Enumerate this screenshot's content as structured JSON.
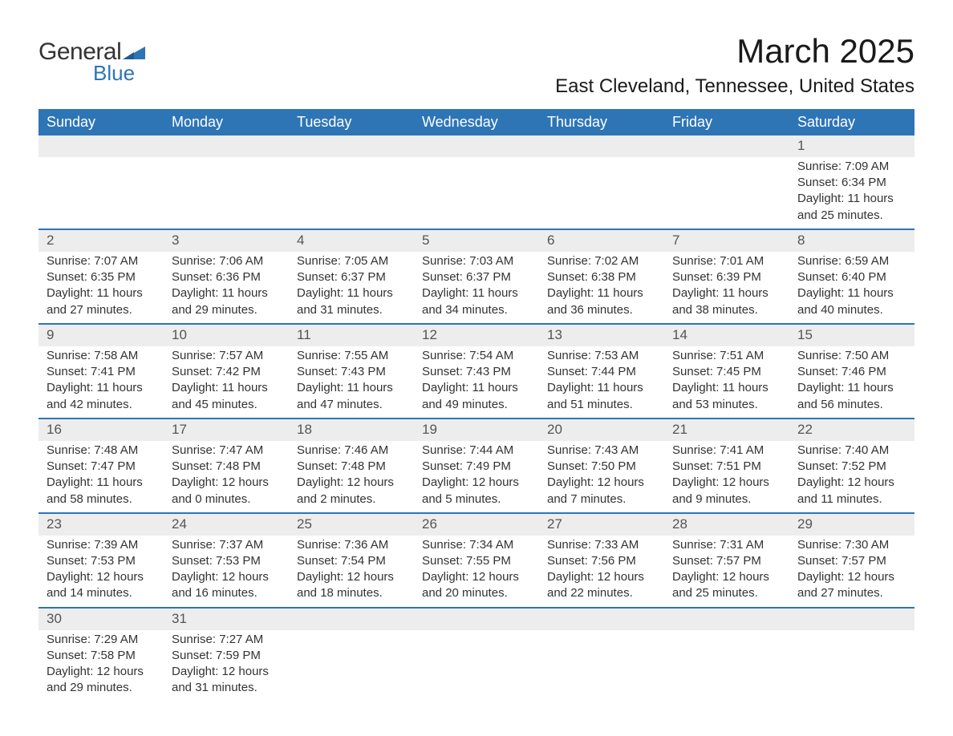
{
  "logo": {
    "general": "General",
    "blue": "Blue",
    "mark_color": "#2e75b6"
  },
  "title": "March 2025",
  "location": "East Cleveland, Tennessee, United States",
  "colors": {
    "header_bg": "#2e75b6",
    "header_text": "#ffffff",
    "daynum_bg": "#ededed",
    "row_border": "#2e75b6",
    "text": "#333333"
  },
  "weekdays": [
    "Sunday",
    "Monday",
    "Tuesday",
    "Wednesday",
    "Thursday",
    "Friday",
    "Saturday"
  ],
  "weeks": [
    [
      null,
      null,
      null,
      null,
      null,
      null,
      {
        "n": "1",
        "sunrise": "7:09 AM",
        "sunset": "6:34 PM",
        "daylight": "11 hours and 25 minutes."
      }
    ],
    [
      {
        "n": "2",
        "sunrise": "7:07 AM",
        "sunset": "6:35 PM",
        "daylight": "11 hours and 27 minutes."
      },
      {
        "n": "3",
        "sunrise": "7:06 AM",
        "sunset": "6:36 PM",
        "daylight": "11 hours and 29 minutes."
      },
      {
        "n": "4",
        "sunrise": "7:05 AM",
        "sunset": "6:37 PM",
        "daylight": "11 hours and 31 minutes."
      },
      {
        "n": "5",
        "sunrise": "7:03 AM",
        "sunset": "6:37 PM",
        "daylight": "11 hours and 34 minutes."
      },
      {
        "n": "6",
        "sunrise": "7:02 AM",
        "sunset": "6:38 PM",
        "daylight": "11 hours and 36 minutes."
      },
      {
        "n": "7",
        "sunrise": "7:01 AM",
        "sunset": "6:39 PM",
        "daylight": "11 hours and 38 minutes."
      },
      {
        "n": "8",
        "sunrise": "6:59 AM",
        "sunset": "6:40 PM",
        "daylight": "11 hours and 40 minutes."
      }
    ],
    [
      {
        "n": "9",
        "sunrise": "7:58 AM",
        "sunset": "7:41 PM",
        "daylight": "11 hours and 42 minutes."
      },
      {
        "n": "10",
        "sunrise": "7:57 AM",
        "sunset": "7:42 PM",
        "daylight": "11 hours and 45 minutes."
      },
      {
        "n": "11",
        "sunrise": "7:55 AM",
        "sunset": "7:43 PM",
        "daylight": "11 hours and 47 minutes."
      },
      {
        "n": "12",
        "sunrise": "7:54 AM",
        "sunset": "7:43 PM",
        "daylight": "11 hours and 49 minutes."
      },
      {
        "n": "13",
        "sunrise": "7:53 AM",
        "sunset": "7:44 PM",
        "daylight": "11 hours and 51 minutes."
      },
      {
        "n": "14",
        "sunrise": "7:51 AM",
        "sunset": "7:45 PM",
        "daylight": "11 hours and 53 minutes."
      },
      {
        "n": "15",
        "sunrise": "7:50 AM",
        "sunset": "7:46 PM",
        "daylight": "11 hours and 56 minutes."
      }
    ],
    [
      {
        "n": "16",
        "sunrise": "7:48 AM",
        "sunset": "7:47 PM",
        "daylight": "11 hours and 58 minutes."
      },
      {
        "n": "17",
        "sunrise": "7:47 AM",
        "sunset": "7:48 PM",
        "daylight": "12 hours and 0 minutes."
      },
      {
        "n": "18",
        "sunrise": "7:46 AM",
        "sunset": "7:48 PM",
        "daylight": "12 hours and 2 minutes."
      },
      {
        "n": "19",
        "sunrise": "7:44 AM",
        "sunset": "7:49 PM",
        "daylight": "12 hours and 5 minutes."
      },
      {
        "n": "20",
        "sunrise": "7:43 AM",
        "sunset": "7:50 PM",
        "daylight": "12 hours and 7 minutes."
      },
      {
        "n": "21",
        "sunrise": "7:41 AM",
        "sunset": "7:51 PM",
        "daylight": "12 hours and 9 minutes."
      },
      {
        "n": "22",
        "sunrise": "7:40 AM",
        "sunset": "7:52 PM",
        "daylight": "12 hours and 11 minutes."
      }
    ],
    [
      {
        "n": "23",
        "sunrise": "7:39 AM",
        "sunset": "7:53 PM",
        "daylight": "12 hours and 14 minutes."
      },
      {
        "n": "24",
        "sunrise": "7:37 AM",
        "sunset": "7:53 PM",
        "daylight": "12 hours and 16 minutes."
      },
      {
        "n": "25",
        "sunrise": "7:36 AM",
        "sunset": "7:54 PM",
        "daylight": "12 hours and 18 minutes."
      },
      {
        "n": "26",
        "sunrise": "7:34 AM",
        "sunset": "7:55 PM",
        "daylight": "12 hours and 20 minutes."
      },
      {
        "n": "27",
        "sunrise": "7:33 AM",
        "sunset": "7:56 PM",
        "daylight": "12 hours and 22 minutes."
      },
      {
        "n": "28",
        "sunrise": "7:31 AM",
        "sunset": "7:57 PM",
        "daylight": "12 hours and 25 minutes."
      },
      {
        "n": "29",
        "sunrise": "7:30 AM",
        "sunset": "7:57 PM",
        "daylight": "12 hours and 27 minutes."
      }
    ],
    [
      {
        "n": "30",
        "sunrise": "7:29 AM",
        "sunset": "7:58 PM",
        "daylight": "12 hours and 29 minutes."
      },
      {
        "n": "31",
        "sunrise": "7:27 AM",
        "sunset": "7:59 PM",
        "daylight": "12 hours and 31 minutes."
      },
      null,
      null,
      null,
      null,
      null
    ]
  ],
  "labels": {
    "sunrise": "Sunrise: ",
    "sunset": "Sunset: ",
    "daylight": "Daylight: "
  }
}
